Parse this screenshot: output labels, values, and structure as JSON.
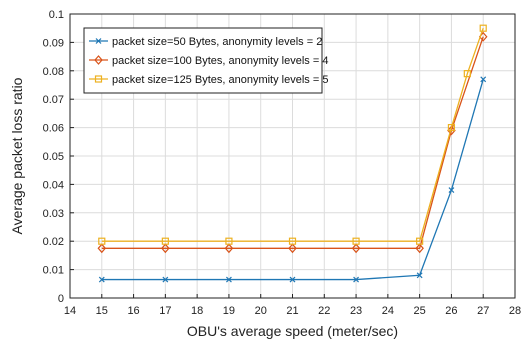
{
  "chart_data": {
    "type": "line",
    "xlabel": "OBU's average speed (meter/sec)",
    "ylabel": "Average packet loss ratio",
    "xlim": [
      14,
      28
    ],
    "ylim": [
      0,
      0.1
    ],
    "xticks": [
      14,
      15,
      16,
      17,
      18,
      19,
      20,
      21,
      22,
      23,
      24,
      25,
      26,
      27,
      28
    ],
    "yticks": [
      0,
      0.01,
      0.02,
      0.03,
      0.04,
      0.05,
      0.06,
      0.07,
      0.08,
      0.09,
      0.1
    ],
    "grid": true,
    "legend_position": "top-left",
    "series": [
      {
        "name": "packet size=50 Bytes, anonymity levels = 2",
        "color": "#1f77b4",
        "marker": "x",
        "points": [
          [
            15,
            0.0065
          ],
          [
            17,
            0.0065
          ],
          [
            19,
            0.0065
          ],
          [
            21,
            0.0065
          ],
          [
            23,
            0.0065
          ],
          [
            25,
            0.008
          ],
          [
            26,
            0.038
          ],
          [
            27,
            0.077
          ]
        ]
      },
      {
        "name": "packet size=100 Bytes, anonymity levels = 4",
        "color": "#d95319",
        "marker": "diamond",
        "points": [
          [
            15,
            0.0175
          ],
          [
            17,
            0.0175
          ],
          [
            19,
            0.0175
          ],
          [
            21,
            0.0175
          ],
          [
            23,
            0.0175
          ],
          [
            25,
            0.0175
          ],
          [
            26,
            0.059
          ],
          [
            27,
            0.092
          ]
        ]
      },
      {
        "name": "packet size=125 Bytes, anonymity levels = 5",
        "color": "#edb120",
        "marker": "square",
        "points": [
          [
            15,
            0.02
          ],
          [
            17,
            0.02
          ],
          [
            19,
            0.02
          ],
          [
            21,
            0.02
          ],
          [
            23,
            0.02
          ],
          [
            25,
            0.02
          ],
          [
            26,
            0.06
          ],
          [
            26.5,
            0.079
          ],
          [
            27,
            0.095
          ]
        ]
      }
    ]
  }
}
